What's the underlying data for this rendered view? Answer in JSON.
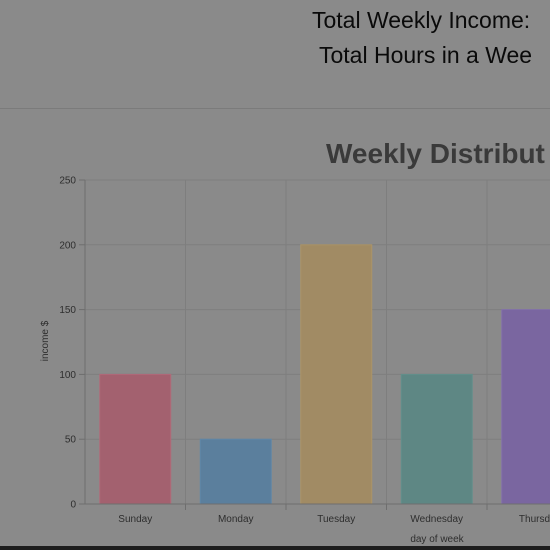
{
  "summary": {
    "income_label": "Total Weekly Income:",
    "hours_label": "Total Hours in a Wee"
  },
  "chart_data": {
    "type": "bar",
    "title": "Weekly Distribut",
    "xlabel": "day of week",
    "ylabel": "income $",
    "categories": [
      "Sunday",
      "Monday",
      "Tuesday",
      "Wednesday",
      "Thursda"
    ],
    "values": [
      100,
      50,
      200,
      100,
      150
    ],
    "colors": [
      "#a3616f",
      "#5b7f9d",
      "#a18b64",
      "#5e8784",
      "#7a66a0"
    ],
    "border_colors": [
      "#b06a79",
      "#5f87a8",
      "#ab9468",
      "#628f8b",
      "#8370ab"
    ],
    "ylim": [
      0,
      250
    ],
    "yticks": [
      0,
      50,
      100,
      150,
      200,
      250
    ],
    "grid": true,
    "legend": "none"
  }
}
